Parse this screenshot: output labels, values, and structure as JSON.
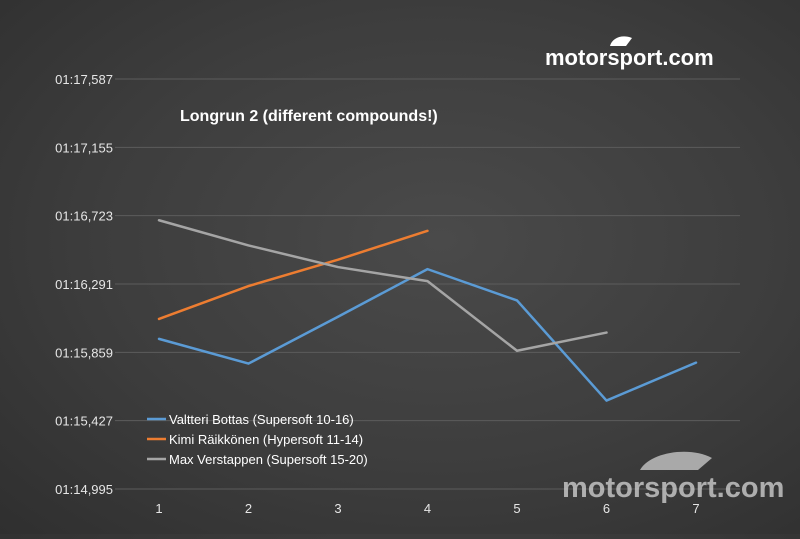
{
  "chart_data": {
    "type": "line",
    "title": "Longrun 2 (different compounds!)",
    "xlabel": "",
    "ylabel": "",
    "categories": [
      "1",
      "2",
      "3",
      "4",
      "5",
      "6",
      "7"
    ],
    "y_tick_labels": [
      "01:17,587",
      "01:17,155",
      "01:16,723",
      "01:16,291",
      "01:15,859",
      "01:15,427",
      "01:14,995"
    ],
    "ylim": [
      74.995,
      77.587
    ],
    "y_tick_values": [
      77.587,
      77.155,
      76.723,
      76.291,
      75.859,
      75.427,
      74.995
    ],
    "grid": true,
    "legend_position": "bottom-left",
    "series": [
      {
        "name": "Valtteri Bottas (Supersoft 10-16)",
        "color": "#5b9bd5",
        "values": [
          75.944,
          75.788,
          76.084,
          76.385,
          76.187,
          75.554,
          75.794
        ]
      },
      {
        "name": "Kimi Räikkönen (Hypersoft 11-14)",
        "color": "#ed7d31",
        "values": [
          76.07,
          76.278,
          76.445,
          76.627,
          null,
          null,
          null
        ]
      },
      {
        "name": "Max Verstappen (Supersoft 15-20)",
        "color": "#a5a5a5",
        "values": [
          76.694,
          76.535,
          76.398,
          76.309,
          75.869,
          75.984,
          null
        ]
      }
    ]
  },
  "branding": {
    "logo_text_main": "motorsport",
    "logo_text_suffix": ".com"
  }
}
